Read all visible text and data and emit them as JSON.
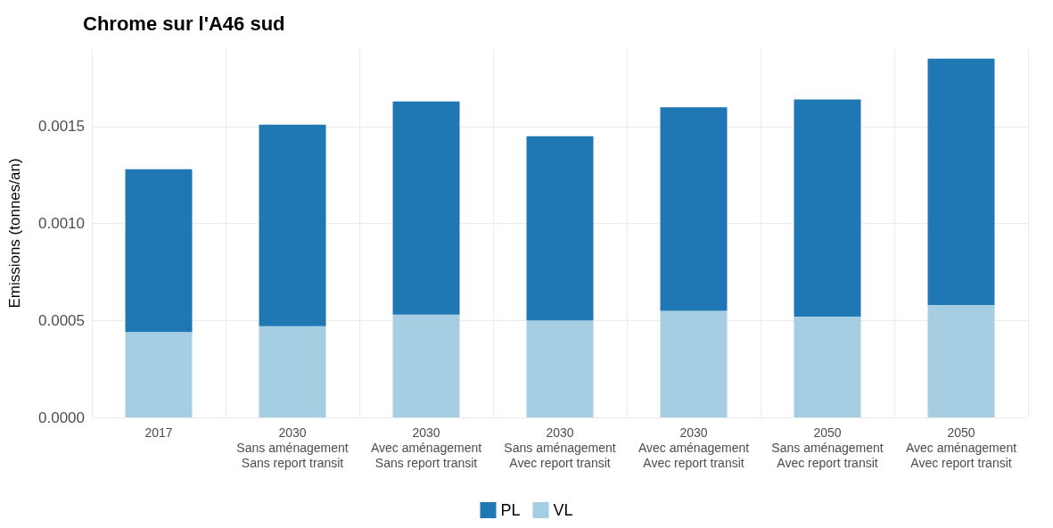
{
  "chart_data": {
    "type": "bar",
    "title": "Chrome sur l'A46 sud",
    "ylabel": "Emissions (tonnes/an)",
    "categories": [
      "2017",
      "2030\nSans aménagement\nSans report transit",
      "2030\nAvec aménagement\nSans report transit",
      "2030\nSans aménagement\nAvec report transit",
      "2030\nAvec aménagement\nAvec report transit",
      "2050\nSans aménagement\nAvec report transit",
      "2050\nAvec aménagement\nAvec report transit"
    ],
    "stacked": true,
    "series": [
      {
        "name": "VL",
        "color": "#a6cee3",
        "values": [
          0.00044,
          0.00047,
          0.00053,
          0.0005,
          0.00055,
          0.00052,
          0.00058
        ]
      },
      {
        "name": "PL",
        "color": "#1f78b4",
        "values": [
          0.00084,
          0.00104,
          0.0011,
          0.00095,
          0.00105,
          0.00112,
          0.00127
        ]
      }
    ],
    "ylim": [
      0,
      0.0019
    ],
    "yticks": [
      {
        "value": 0,
        "label": "0.0000"
      },
      {
        "value": 0.0005,
        "label": "0.0005"
      },
      {
        "value": 0.001,
        "label": "0.0010"
      },
      {
        "value": 0.0015,
        "label": "0.0015"
      }
    ],
    "grid": true,
    "legend": "bottom"
  }
}
